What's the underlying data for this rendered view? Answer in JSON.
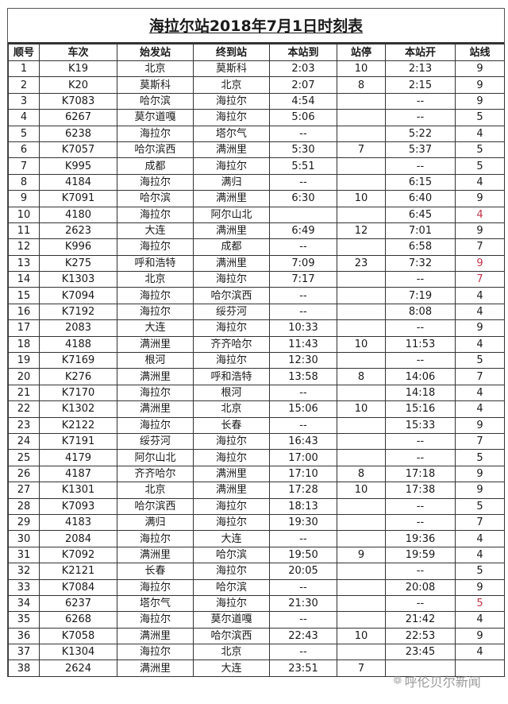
{
  "title": "海拉尔站2018年7月1日时刻表",
  "columns": [
    "顺号",
    "车次",
    "始发站",
    "终到站",
    "本站到",
    "站停",
    "本站开",
    "站线"
  ],
  "accent_color": "#c2344a",
  "rows": [
    [
      "1",
      "K19",
      "北京",
      "莫斯科",
      "2:03",
      "10",
      "2:13",
      "9"
    ],
    [
      "2",
      "K20",
      "莫斯科",
      "北京",
      "2:07",
      "8",
      "2:15",
      "9"
    ],
    [
      "3",
      "K7083",
      "哈尔滨",
      "海拉尔",
      "4:54",
      "",
      "--",
      "9"
    ],
    [
      "4",
      "6267",
      "莫尔道嘎",
      "海拉尔",
      "5:06",
      "",
      "--",
      "5"
    ],
    [
      "5",
      "6238",
      "海拉尔",
      "塔尔气",
      "--",
      "",
      "5:22",
      "4"
    ],
    [
      "6",
      "K7057",
      "哈尔滨西",
      "满洲里",
      "5:30",
      "7",
      "5:37",
      "5"
    ],
    [
      "7",
      "K995",
      "成都",
      "海拉尔",
      "5:51",
      "",
      "--",
      "5"
    ],
    [
      "8",
      "4184",
      "海拉尔",
      "满归",
      "--",
      "",
      "6:15",
      "4"
    ],
    [
      "9",
      "K7091",
      "哈尔滨",
      "满洲里",
      "6:30",
      "10",
      "6:40",
      "9"
    ],
    [
      "10",
      "4180",
      "海拉尔",
      "阿尔山北",
      "",
      "",
      "6:45",
      "4"
    ],
    [
      "11",
      "2623",
      "大连",
      "满洲里",
      "6:49",
      "12",
      "7:01",
      "9"
    ],
    [
      "12",
      "K996",
      "海拉尔",
      "成都",
      "--",
      "",
      "6:58",
      "7"
    ],
    [
      "13",
      "K275",
      "呼和浩特",
      "满洲里",
      "7:09",
      "23",
      "7:32",
      "9"
    ],
    [
      "14",
      "K1303",
      "北京",
      "海拉尔",
      "7:17",
      "",
      "--",
      "7"
    ],
    [
      "15",
      "K7094",
      "海拉尔",
      "哈尔滨西",
      "--",
      "",
      "7:19",
      "4"
    ],
    [
      "16",
      "K7192",
      "海拉尔",
      "绥芬河",
      "--",
      "",
      "8:08",
      "4"
    ],
    [
      "17",
      "2083",
      "大连",
      "海拉尔",
      "10:33",
      "",
      "--",
      "9"
    ],
    [
      "18",
      "4188",
      "满洲里",
      "齐齐哈尔",
      "11:43",
      "10",
      "11:53",
      "4"
    ],
    [
      "19",
      "K7169",
      "根河",
      "海拉尔",
      "12:30",
      "",
      "--",
      "5"
    ],
    [
      "20",
      "K276",
      "满洲里",
      "呼和浩特",
      "13:58",
      "8",
      "14:06",
      "7"
    ],
    [
      "21",
      "K7170",
      "海拉尔",
      "根河",
      "--",
      "",
      "14:18",
      "4"
    ],
    [
      "22",
      "K1302",
      "满洲里",
      "北京",
      "15:06",
      "10",
      "15:16",
      "4"
    ],
    [
      "23",
      "K2122",
      "海拉尔",
      "长春",
      "--",
      "",
      "15:33",
      "9"
    ],
    [
      "24",
      "K7191",
      "绥芬河",
      "海拉尔",
      "16:43",
      "",
      "--",
      "7"
    ],
    [
      "25",
      "4179",
      "阿尔山北",
      "海拉尔",
      "17:00",
      "",
      "--",
      "5"
    ],
    [
      "26",
      "4187",
      "齐齐哈尔",
      "满洲里",
      "17:10",
      "8",
      "17:18",
      "9"
    ],
    [
      "27",
      "K1301",
      "北京",
      "满洲里",
      "17:28",
      "10",
      "17:38",
      "9"
    ],
    [
      "28",
      "K7093",
      "哈尔滨西",
      "海拉尔",
      "18:13",
      "",
      "--",
      "5"
    ],
    [
      "29",
      "4183",
      "满归",
      "海拉尔",
      "19:30",
      "",
      "--",
      "7"
    ],
    [
      "30",
      "2084",
      "海拉尔",
      "大连",
      "--",
      "",
      "19:36",
      "4"
    ],
    [
      "31",
      "K7092",
      "满洲里",
      "哈尔滨",
      "19:50",
      "9",
      "19:59",
      "4"
    ],
    [
      "32",
      "K2121",
      "长春",
      "海拉尔",
      "20:05",
      "",
      "--",
      "5"
    ],
    [
      "33",
      "K7084",
      "海拉尔",
      "哈尔滨",
      "--",
      "",
      "20:08",
      "9"
    ],
    [
      "34",
      "6237",
      "塔尔气",
      "海拉尔",
      "21:30",
      "",
      "--",
      "5"
    ],
    [
      "35",
      "6268",
      "海拉尔",
      "莫尔道嘎",
      "--",
      "",
      "21:42",
      "4"
    ],
    [
      "36",
      "K7058",
      "满洲里",
      "哈尔滨西",
      "22:43",
      "10",
      "22:53",
      "9"
    ],
    [
      "37",
      "K1304",
      "海拉尔",
      "北京",
      "--",
      "",
      "23:45",
      "4"
    ],
    [
      "38",
      "2624",
      "满洲里",
      "大连",
      "23:51",
      "7",
      "",
      ""
    ]
  ],
  "red_track_rows": [
    10,
    13,
    14,
    34
  ],
  "watermark": "呼伦贝尔新闻",
  "watermark_icon": "wechat-icon"
}
